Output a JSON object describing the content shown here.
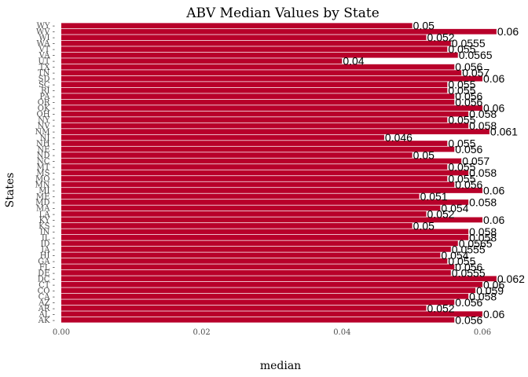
{
  "chart_data": {
    "type": "bar",
    "orientation": "horizontal",
    "title": "ABV Median Values by State",
    "xlabel": "median",
    "ylabel": "States",
    "xlim": [
      0,
      0.062
    ],
    "xticks": [
      "0.00",
      "0.02",
      "0.04",
      "0.06"
    ],
    "grid": false,
    "bar_color": "#b8002a",
    "categories": [
      "WY",
      "WV",
      "WI",
      "WA",
      "VT",
      "VA",
      "UT",
      "TX",
      "TN",
      "SD",
      "SC",
      "RI",
      "PA",
      "OR",
      "OK",
      "OH",
      "NY",
      "NV",
      "NM",
      "NJ",
      "NH",
      "NE",
      "ND",
      "NC",
      "MT",
      "MS",
      "MO",
      "MN",
      "MI",
      "ME",
      "MD",
      "MA",
      "LA",
      "KY",
      "KS",
      "IN",
      "IL",
      "ID",
      "IA",
      "HI",
      "GA",
      "FL",
      "DE",
      "DC",
      "CT",
      "CO",
      "CA",
      "AZ",
      "AR",
      "AL",
      "AK"
    ],
    "values": [
      0.05,
      0.062,
      0.052,
      0.0555,
      0.055,
      0.0565,
      0.04,
      0.056,
      0.057,
      0.06,
      0.055,
      0.055,
      0.056,
      0.056,
      0.06,
      0.058,
      0.055,
      0.058,
      0.061,
      0.046,
      0.055,
      0.056,
      0.05,
      0.057,
      0.055,
      0.058,
      0.055,
      0.056,
      0.06,
      0.051,
      0.058,
      0.054,
      0.052,
      0.06,
      0.05,
      0.058,
      0.058,
      0.0565,
      0.0555,
      0.054,
      0.055,
      0.056,
      0.0555,
      0.062,
      0.06,
      0.059,
      0.058,
      0.056,
      0.052,
      0.06,
      0.056
    ],
    "labels": [
      "0.05",
      "0.06",
      "0.052",
      "0.0555",
      "0.055",
      "0.0565",
      "0.04",
      "0.056",
      "0.057",
      "0.06",
      "0.055",
      "0.055",
      "0.056",
      "0.056",
      "0.06",
      "0.058",
      "0.055",
      "0.058",
      "0.061",
      "0.046",
      "0.055",
      "0.056",
      "0.05",
      "0.057",
      "0.055",
      "0.058",
      "0.055",
      "0.056",
      "0.06",
      "0.051",
      "0.058",
      "0.054",
      "0.052",
      "0.06",
      "0.05",
      "0.058",
      "0.058",
      "0.0565",
      "0.0555",
      "0.054",
      "0.055",
      "0.056",
      "0.0555",
      "0.062",
      "0.06",
      "0.059",
      "0.058",
      "0.056",
      "0.052",
      "0.06",
      "0.056"
    ]
  }
}
